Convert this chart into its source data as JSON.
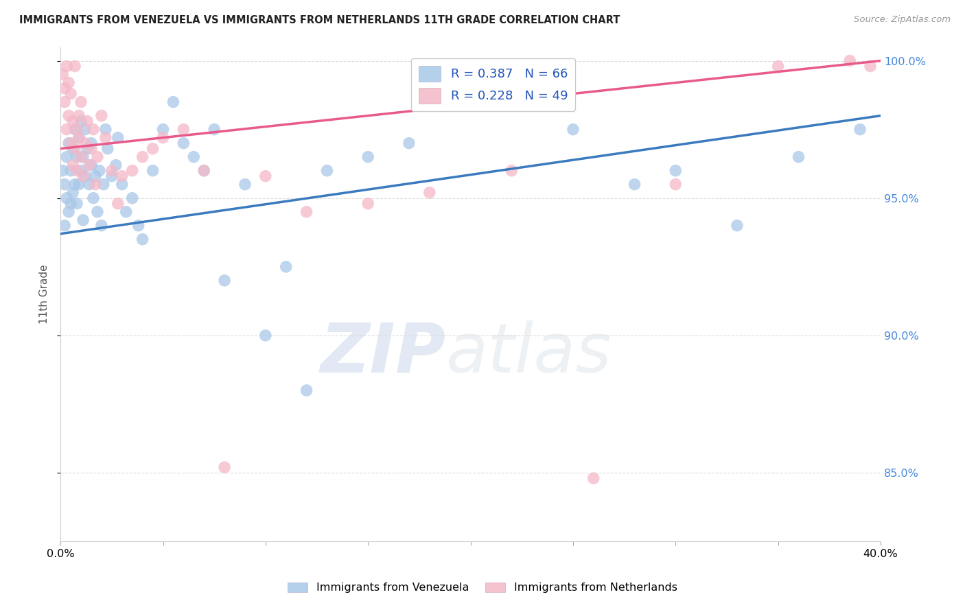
{
  "title": "IMMIGRANTS FROM VENEZUELA VS IMMIGRANTS FROM NETHERLANDS 11TH GRADE CORRELATION CHART",
  "source": "Source: ZipAtlas.com",
  "ylabel": "11th Grade",
  "x_min": 0.0,
  "x_max": 0.4,
  "y_min": 0.825,
  "y_max": 1.005,
  "y_ticks_right": [
    0.85,
    0.9,
    0.95,
    1.0
  ],
  "legend_label_blue_display": "Immigrants from Venezuela",
  "legend_label_pink_display": "Immigrants from Netherlands",
  "blue_color": "#a8c8e8",
  "pink_color": "#f4b8c8",
  "blue_line_color": "#3a7abf",
  "pink_line_color": "#e85a8a",
  "R_blue": 0.387,
  "N_blue": 66,
  "R_pink": 0.228,
  "N_pink": 49,
  "watermark_zip": "ZIP",
  "watermark_atlas": "atlas",
  "background_color": "#ffffff",
  "grid_color": "#dddddd",
  "blue_line_x0": 0.0,
  "blue_line_y0": 0.937,
  "blue_line_x1": 0.4,
  "blue_line_y1": 0.98,
  "pink_line_x0": 0.0,
  "pink_line_y0": 0.968,
  "pink_line_x1": 0.4,
  "pink_line_y1": 1.0,
  "blue_x": [
    0.001,
    0.002,
    0.002,
    0.003,
    0.003,
    0.004,
    0.004,
    0.005,
    0.005,
    0.006,
    0.006,
    0.007,
    0.007,
    0.008,
    0.008,
    0.009,
    0.009,
    0.01,
    0.01,
    0.011,
    0.011,
    0.012,
    0.012,
    0.013,
    0.014,
    0.015,
    0.015,
    0.016,
    0.017,
    0.018,
    0.019,
    0.02,
    0.021,
    0.022,
    0.023,
    0.025,
    0.027,
    0.028,
    0.03,
    0.032,
    0.035,
    0.038,
    0.04,
    0.045,
    0.05,
    0.055,
    0.06,
    0.065,
    0.07,
    0.075,
    0.08,
    0.09,
    0.1,
    0.11,
    0.12,
    0.13,
    0.15,
    0.17,
    0.19,
    0.22,
    0.25,
    0.28,
    0.3,
    0.33,
    0.36,
    0.39
  ],
  "blue_y": [
    0.96,
    0.94,
    0.955,
    0.95,
    0.965,
    0.945,
    0.97,
    0.948,
    0.96,
    0.952,
    0.968,
    0.955,
    0.975,
    0.948,
    0.965,
    0.955,
    0.972,
    0.96,
    0.978,
    0.965,
    0.942,
    0.958,
    0.975,
    0.968,
    0.955,
    0.962,
    0.97,
    0.95,
    0.958,
    0.945,
    0.96,
    0.94,
    0.955,
    0.975,
    0.968,
    0.958,
    0.962,
    0.972,
    0.955,
    0.945,
    0.95,
    0.94,
    0.935,
    0.96,
    0.975,
    0.985,
    0.97,
    0.965,
    0.96,
    0.975,
    0.92,
    0.955,
    0.9,
    0.925,
    0.88,
    0.96,
    0.965,
    0.97,
    0.99,
    0.985,
    0.975,
    0.955,
    0.96,
    0.94,
    0.965,
    0.975
  ],
  "pink_x": [
    0.001,
    0.002,
    0.002,
    0.003,
    0.003,
    0.004,
    0.004,
    0.005,
    0.005,
    0.006,
    0.006,
    0.007,
    0.007,
    0.008,
    0.008,
    0.009,
    0.009,
    0.01,
    0.01,
    0.011,
    0.012,
    0.013,
    0.014,
    0.015,
    0.016,
    0.017,
    0.018,
    0.02,
    0.022,
    0.025,
    0.028,
    0.03,
    0.035,
    0.04,
    0.045,
    0.05,
    0.06,
    0.07,
    0.08,
    0.1,
    0.12,
    0.15,
    0.18,
    0.22,
    0.26,
    0.3,
    0.35,
    0.385,
    0.395
  ],
  "pink_y": [
    0.995,
    0.99,
    0.985,
    0.998,
    0.975,
    0.992,
    0.98,
    0.988,
    0.97,
    0.978,
    0.962,
    0.998,
    0.968,
    0.975,
    0.96,
    0.98,
    0.972,
    0.985,
    0.965,
    0.958,
    0.97,
    0.978,
    0.962,
    0.968,
    0.975,
    0.955,
    0.965,
    0.98,
    0.972,
    0.96,
    0.948,
    0.958,
    0.96,
    0.965,
    0.968,
    0.972,
    0.975,
    0.96,
    0.852,
    0.958,
    0.945,
    0.948,
    0.952,
    0.96,
    0.848,
    0.955,
    0.998,
    1.0,
    0.998
  ]
}
